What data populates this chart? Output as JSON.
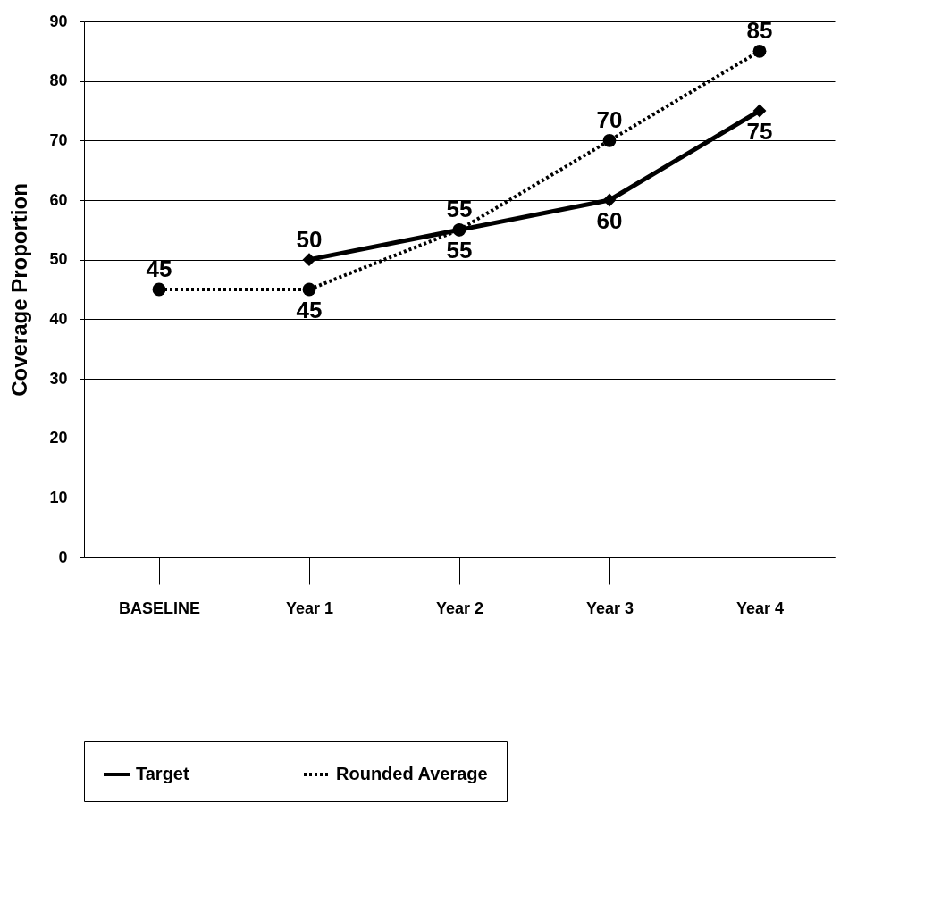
{
  "chart_data": {
    "type": "line",
    "ylabel": "Coverage Proportion",
    "categories": [
      "BASELINE",
      "Year 1",
      "Year 2",
      "Year 3",
      "Year 4"
    ],
    "series": [
      {
        "name": "Target",
        "color": "#000000",
        "values": [
          null,
          50,
          55,
          60,
          75
        ],
        "marker": "diamond",
        "line_style": "solid"
      },
      {
        "name": "Rounded Average",
        "color": "#000000",
        "values": [
          45,
          45,
          55,
          70,
          85
        ],
        "marker": "circle",
        "line_style": "dotted"
      }
    ],
    "ylim": [
      0,
      90
    ],
    "yticks": [
      0,
      10,
      20,
      30,
      40,
      50,
      60,
      70,
      80,
      90
    ],
    "grid": "y",
    "legend": "bottom",
    "data_labels": true
  }
}
